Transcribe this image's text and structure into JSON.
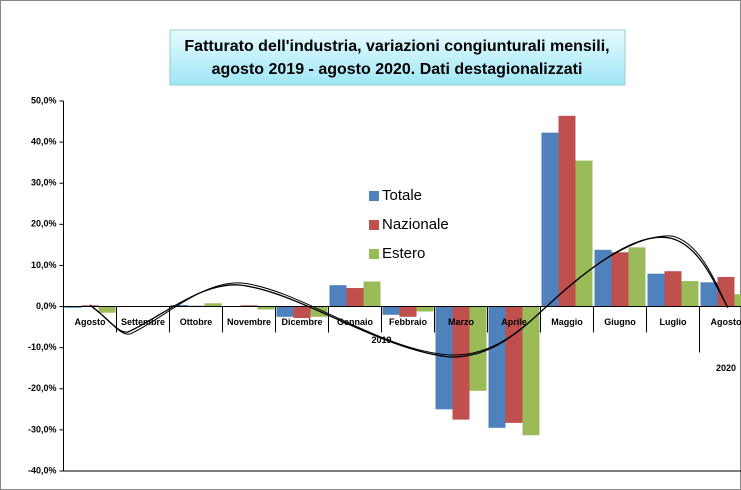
{
  "chart_data": {
    "type": "bar",
    "title": "Fatturato dell'industria, variazioni congiunturali mensili,",
    "subtitle": "agosto 2019 - agosto 2020. Dati destagionalizzati",
    "categories": [
      "Agosto",
      "Settembre",
      "Ottobre",
      "Novembre",
      "Dicembre",
      "Gennaio",
      "Febbraio",
      "Marzo",
      "Aprile",
      "Maggio",
      "Giugno",
      "Luglio",
      "Agosto"
    ],
    "x_group_labels": [
      "2019",
      "2020"
    ],
    "series": [
      {
        "name": "Totale",
        "color": "#4f81bd",
        "values": [
          -0.3,
          0,
          0.4,
          0,
          -2.5,
          5.2,
          -2,
          -25,
          -29.5,
          42.3,
          13.8,
          8,
          5.9
        ]
      },
      {
        "name": "Nazionale",
        "color": "#c0504d",
        "values": [
          0.3,
          0,
          0.2,
          0.3,
          -2.8,
          4.5,
          -2.5,
          -27.5,
          -28.3,
          46.4,
          13.2,
          8.6,
          7.2
        ]
      },
      {
        "name": "Estero",
        "color": "#9bbb59",
        "values": [
          -1.5,
          0,
          0.8,
          -0.7,
          -2.5,
          6.1,
          -1.2,
          -20.5,
          -31.3,
          35.5,
          14.4,
          6.2,
          3
        ]
      }
    ],
    "ylim": [
      -40,
      50
    ],
    "yticks": [
      {
        "value": -40,
        "label": "-40,0%"
      },
      {
        "value": -30,
        "label": "-30,0%"
      },
      {
        "value": -20,
        "label": "-20,0%"
      },
      {
        "value": -10,
        "label": "-10,0%"
      },
      {
        "value": 0,
        "label": "0,0%"
      },
      {
        "value": 10,
        "label": "10,0%"
      },
      {
        "value": 20,
        "label": "20,0%"
      },
      {
        "value": 30,
        "label": "30,0%"
      },
      {
        "value": 40,
        "label": "40,0%"
      },
      {
        "value": 50,
        "label": "50,0%"
      }
    ],
    "grid": false
  }
}
